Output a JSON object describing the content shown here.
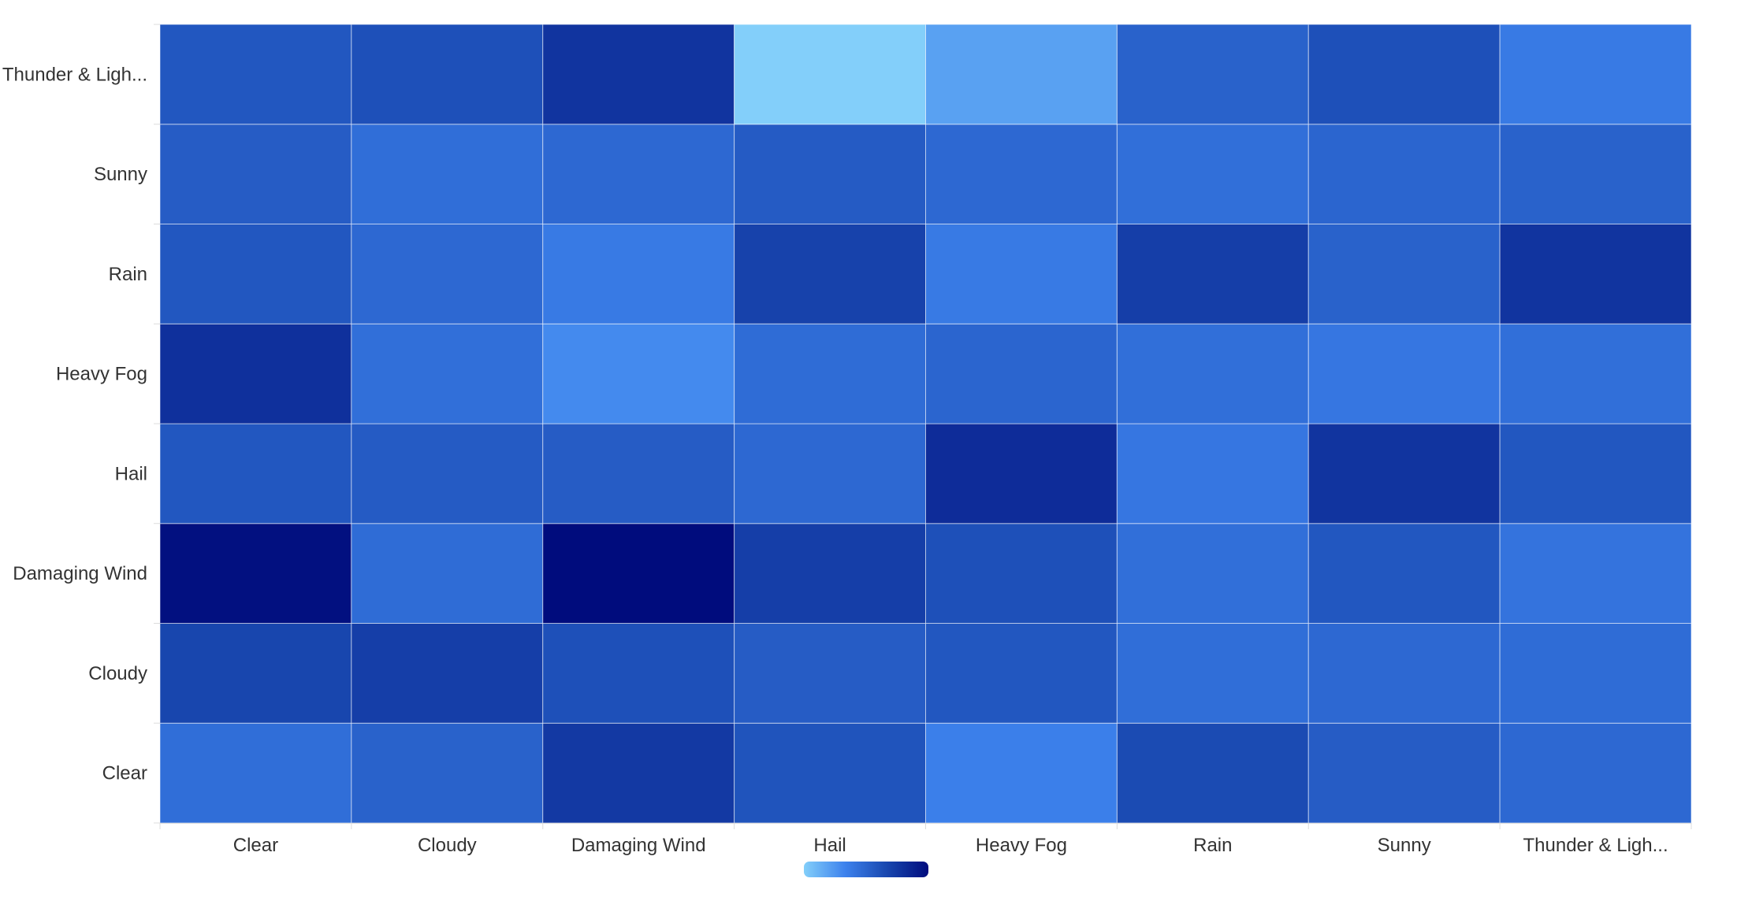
{
  "chart_data": {
    "type": "heatmap",
    "title": "",
    "xlabel": "",
    "ylabel": "",
    "x_categories": [
      "Clear",
      "Cloudy",
      "Damaging Wind",
      "Hail",
      "Heavy Fog",
      "Rain",
      "Sunny",
      "Thunder & Ligh..."
    ],
    "y_categories": [
      "Clear",
      "Cloudy",
      "Damaging Wind",
      "Hail",
      "Heavy Fog",
      "Rain",
      "Sunny",
      "Thunder & Ligh..."
    ],
    "values": [
      [
        45,
        52,
        75,
        60,
        35,
        65,
        55,
        48
      ],
      [
        68,
        72,
        62,
        55,
        58,
        45,
        48,
        46
      ],
      [
        98,
        46,
        100,
        72,
        62,
        44,
        58,
        42
      ],
      [
        58,
        56,
        55,
        48,
        82,
        40,
        78,
        58
      ],
      [
        80,
        44,
        30,
        46,
        50,
        44,
        40,
        44
      ],
      [
        58,
        48,
        38,
        70,
        38,
        72,
        52,
        78
      ],
      [
        55,
        45,
        48,
        56,
        48,
        44,
        50,
        52
      ],
      [
        58,
        62,
        78,
        0,
        20,
        52,
        62,
        38
      ]
    ],
    "value_range": [
      0,
      100
    ],
    "color_scale": [
      "#83cffa",
      "#3d82ed",
      "#1948b0",
      "#000c7d"
    ],
    "legend": "bottom-center",
    "grid": true
  }
}
